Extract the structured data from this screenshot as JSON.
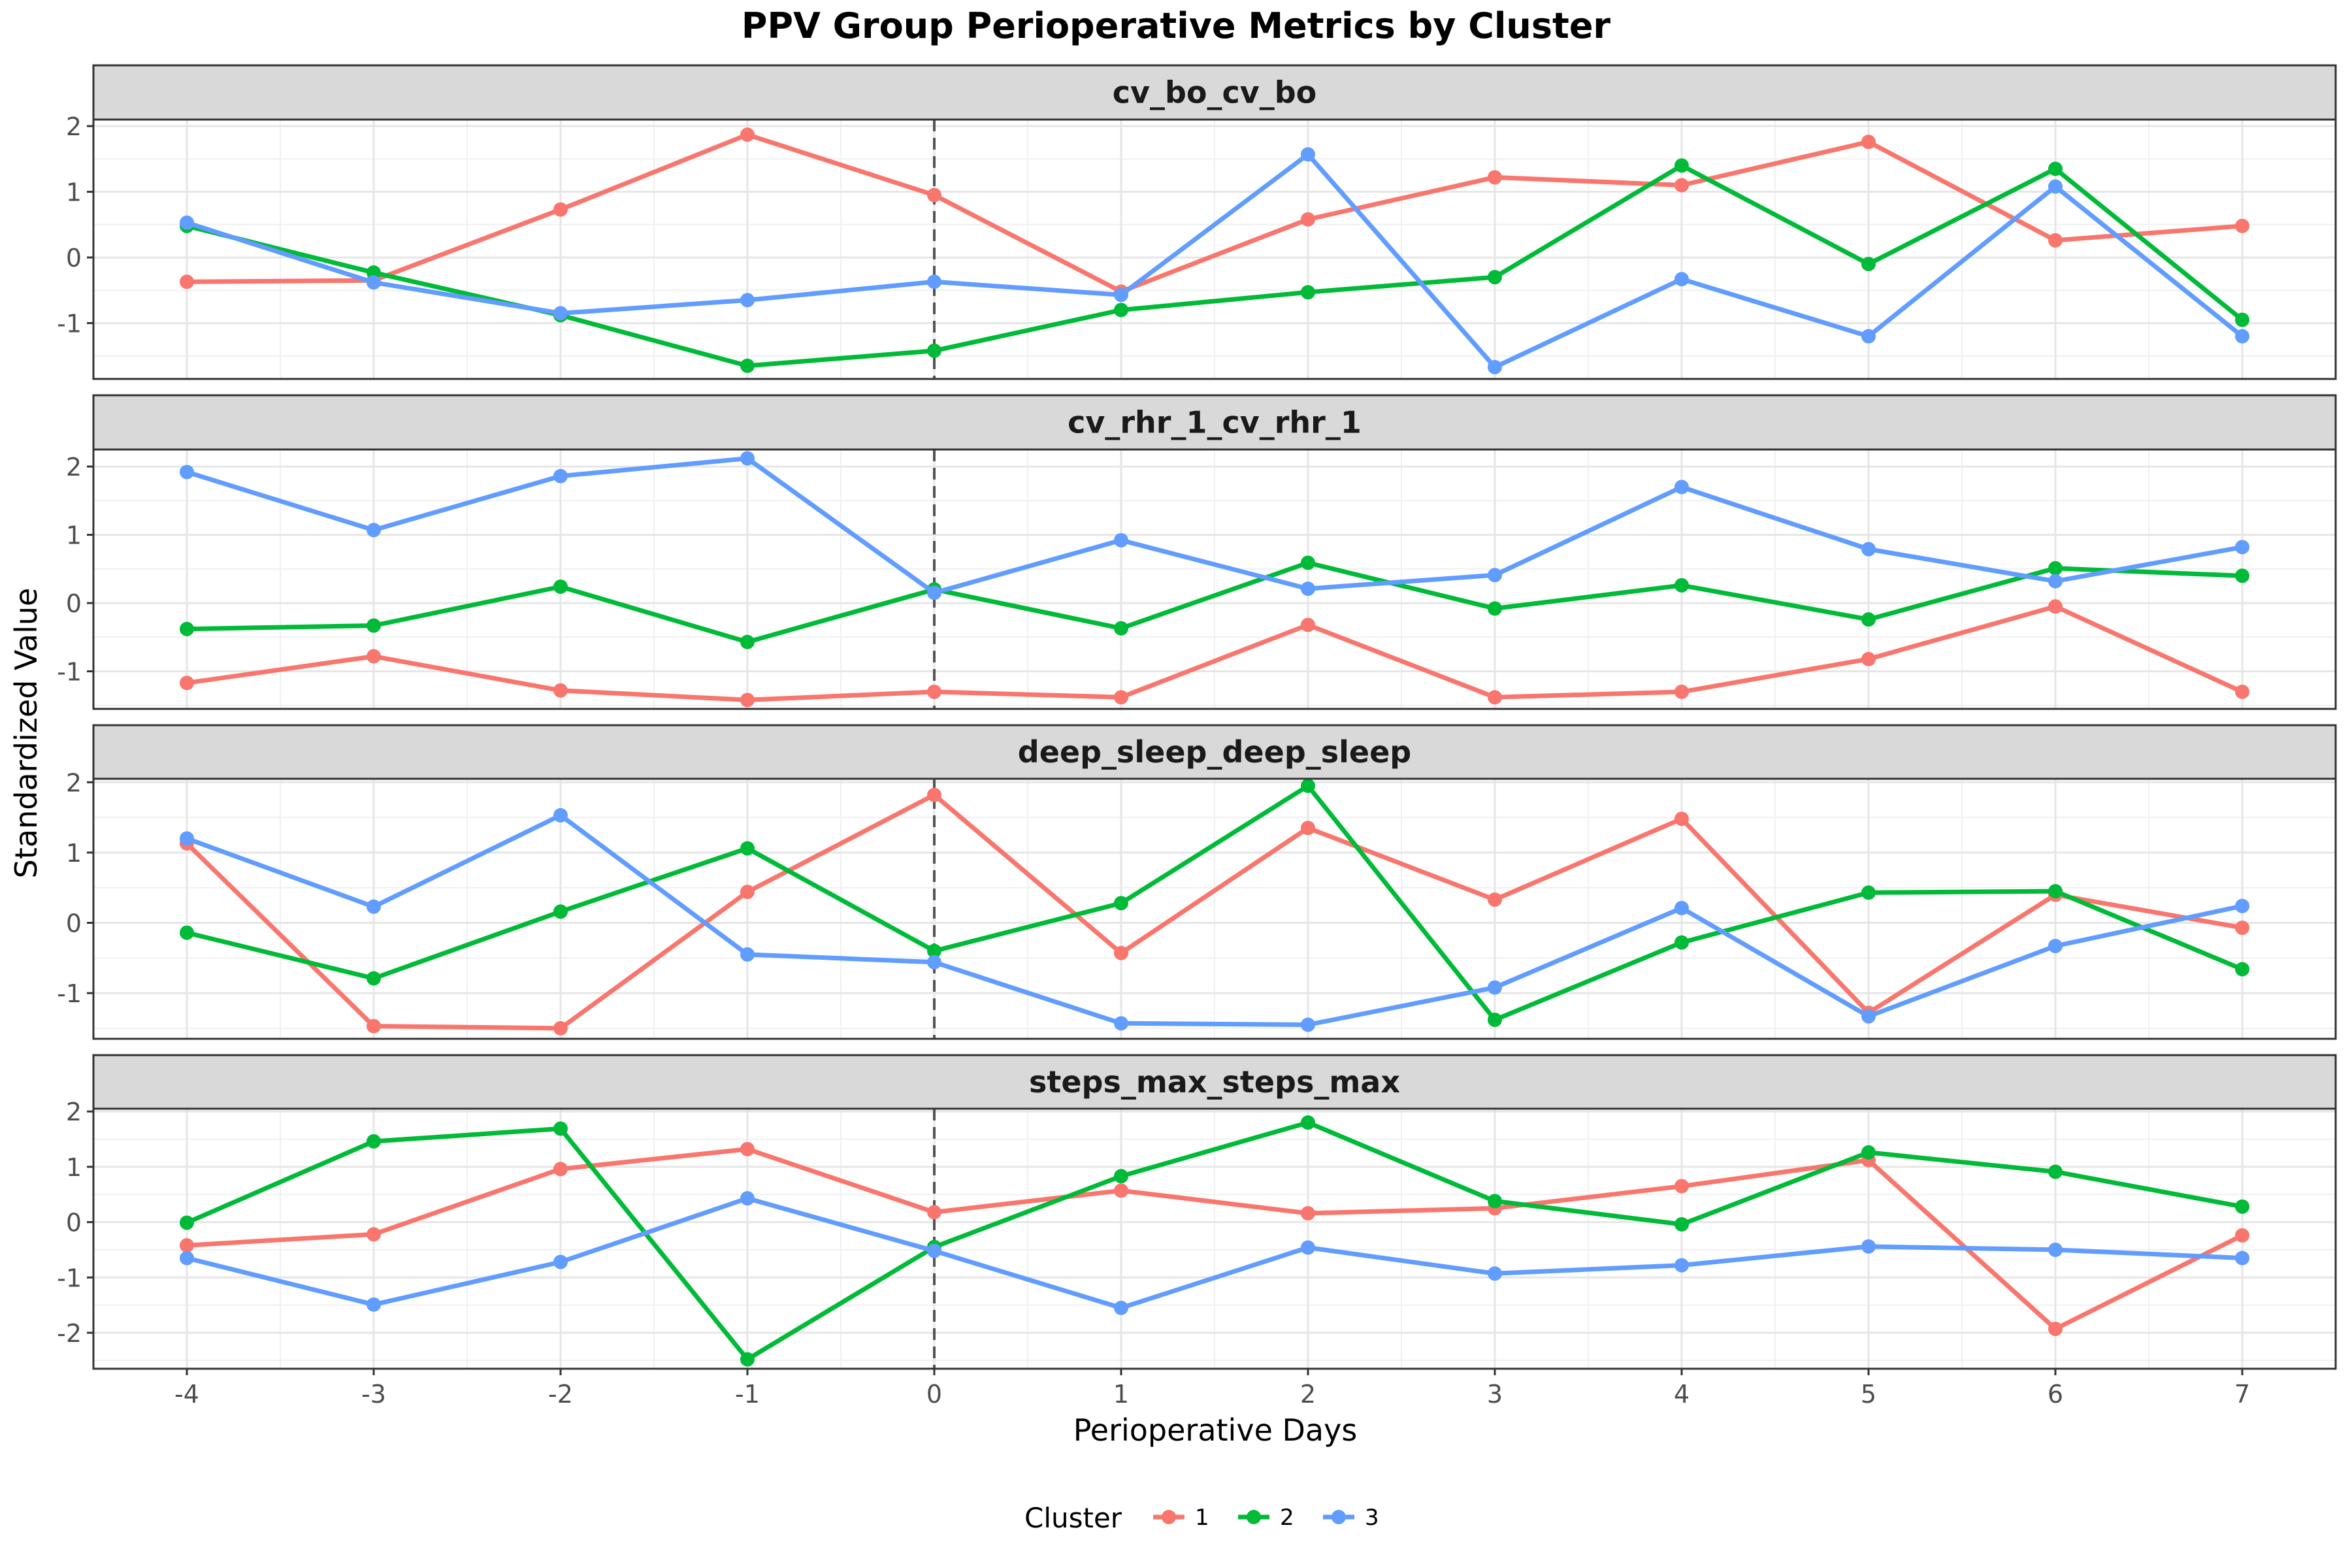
{
  "chart_data": {
    "type": "line",
    "title": "PPV Group Perioperative Metrics by Cluster",
    "xlabel": "Perioperative Days",
    "ylabel": "Standardized Value",
    "x": [
      -4,
      -3,
      -2,
      -1,
      0,
      1,
      2,
      3,
      4,
      5,
      6,
      7
    ],
    "x_tick_labels": [
      "-4",
      "-3",
      "-2",
      "-1",
      "0",
      "1",
      "2",
      "3",
      "4",
      "5",
      "6",
      "7"
    ],
    "xlim": [
      -4.5,
      7.5
    ],
    "reference_line_x": 0,
    "legend": {
      "title": "Cluster",
      "position": "bottom",
      "entries": [
        {
          "label": "1",
          "color": "#F8766D"
        },
        {
          "label": "2",
          "color": "#00BA38"
        },
        {
          "label": "3",
          "color": "#619CFF"
        }
      ]
    },
    "grid": true,
    "panels": [
      {
        "strip_label": "cv_bo_cv_bo",
        "ylim": [
          -1.85,
          2.1
        ],
        "y_ticks": [
          -1,
          0,
          1,
          2
        ],
        "y_tick_labels": [
          "-1",
          "0",
          "1",
          "2"
        ],
        "series": [
          {
            "name": "1",
            "color": "#F8766D",
            "values": [
              -0.37,
              -0.35,
              0.73,
              1.87,
              0.95,
              -0.52,
              0.58,
              1.22,
              1.1,
              1.76,
              0.26,
              0.48
            ]
          },
          {
            "name": "2",
            "color": "#00BA38",
            "values": [
              0.48,
              -0.23,
              -0.88,
              -1.65,
              -1.42,
              -0.8,
              -0.53,
              -0.3,
              1.4,
              -0.1,
              1.35,
              -0.95
            ]
          },
          {
            "name": "3",
            "color": "#619CFF",
            "values": [
              0.53,
              -0.38,
              -0.85,
              -0.65,
              -0.37,
              -0.57,
              1.57,
              -1.67,
              -0.33,
              -1.2,
              1.08,
              -1.2
            ]
          }
        ]
      },
      {
        "strip_label": "cv_rhr_1_cv_rhr_1",
        "ylim": [
          -1.55,
          2.25
        ],
        "y_ticks": [
          -1,
          0,
          1,
          2
        ],
        "y_tick_labels": [
          "-1",
          "0",
          "1",
          "2"
        ],
        "series": [
          {
            "name": "1",
            "color": "#F8766D",
            "values": [
              -1.17,
              -0.78,
              -1.28,
              -1.42,
              -1.3,
              -1.38,
              -0.32,
              -1.38,
              -1.3,
              -0.82,
              -0.05,
              -1.3
            ]
          },
          {
            "name": "2",
            "color": "#00BA38",
            "values": [
              -0.38,
              -0.33,
              0.24,
              -0.57,
              0.2,
              -0.37,
              0.59,
              -0.08,
              0.26,
              -0.24,
              0.51,
              0.4
            ]
          },
          {
            "name": "3",
            "color": "#619CFF",
            "values": [
              1.92,
              1.07,
              1.86,
              2.12,
              0.15,
              0.92,
              0.21,
              0.41,
              1.7,
              0.79,
              0.32,
              0.82
            ]
          }
        ]
      },
      {
        "strip_label": "deep_sleep_deep_sleep",
        "ylim": [
          -1.65,
          2.05
        ],
        "y_ticks": [
          -1,
          0,
          1,
          2
        ],
        "y_tick_labels": [
          "-1",
          "0",
          "1",
          "2"
        ],
        "series": [
          {
            "name": "1",
            "color": "#F8766D",
            "values": [
              1.13,
              -1.47,
              -1.5,
              0.44,
              1.82,
              -0.43,
              1.35,
              0.33,
              1.48,
              -1.28,
              0.4,
              -0.07
            ]
          },
          {
            "name": "2",
            "color": "#00BA38",
            "values": [
              -0.14,
              -0.79,
              0.16,
              1.06,
              -0.4,
              0.28,
              1.95,
              -1.38,
              -0.28,
              0.43,
              0.45,
              -0.66
            ]
          },
          {
            "name": "3",
            "color": "#619CFF",
            "values": [
              1.2,
              0.23,
              1.53,
              -0.45,
              -0.56,
              -1.43,
              -1.45,
              -0.92,
              0.21,
              -1.33,
              -0.33,
              0.24
            ]
          }
        ]
      },
      {
        "strip_label": "steps_max_steps_max",
        "ylim": [
          -2.65,
          2.05
        ],
        "y_ticks": [
          -2,
          -1,
          0,
          1,
          2
        ],
        "y_tick_labels": [
          "-2",
          "-1",
          "0",
          "1",
          "2"
        ],
        "series": [
          {
            "name": "1",
            "color": "#F8766D",
            "values": [
              -0.42,
              -0.22,
              0.96,
              1.32,
              0.18,
              0.57,
              0.16,
              0.25,
              0.65,
              1.12,
              -1.93,
              -0.24
            ]
          },
          {
            "name": "2",
            "color": "#00BA38",
            "values": [
              -0.01,
              1.46,
              1.69,
              -2.48,
              -0.45,
              0.83,
              1.8,
              0.38,
              -0.04,
              1.26,
              0.91,
              0.28
            ]
          },
          {
            "name": "3",
            "color": "#619CFF",
            "values": [
              -0.65,
              -1.49,
              -0.72,
              0.43,
              -0.52,
              -1.55,
              -0.46,
              -0.93,
              -0.78,
              -0.44,
              -0.5,
              -0.65
            ]
          }
        ]
      }
    ]
  }
}
